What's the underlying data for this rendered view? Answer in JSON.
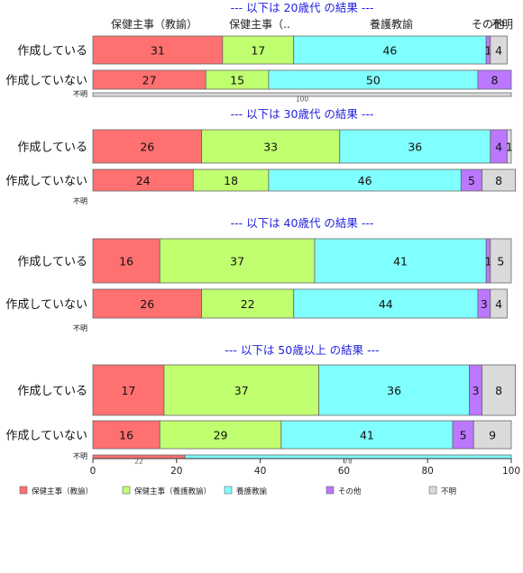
{
  "chart_data": {
    "type": "bar",
    "orientation": "horizontal",
    "stacked": true,
    "xlim": [
      0,
      100
    ],
    "x_ticks": [
      "0",
      "20",
      "40",
      "60",
      "80",
      "100"
    ],
    "top_labels": [
      "保健主事（教諭）",
      "保健主事（..",
      "養護教諭",
      "その他",
      "不明"
    ],
    "legend_position": "bottom",
    "series": [
      {
        "name": "保健主事（教諭）",
        "color": "#ff7070"
      },
      {
        "name": "保健主事（養護教諭）",
        "color": "#c0ff70"
      },
      {
        "name": "養護教諭",
        "color": "#80ffff"
      },
      {
        "name": "その他",
        "color": "#bb77ff"
      },
      {
        "name": "不明",
        "color": "#dadada"
      }
    ],
    "panels": [
      {
        "title": "--- 以下は 20歳代 の結果 ---",
        "rows": [
          {
            "label": "作成している",
            "values": [
              31,
              17,
              46,
              1,
              4
            ]
          },
          {
            "label": "作成していない",
            "values": [
              27,
              15,
              50,
              8,
              0
            ]
          },
          {
            "label": "不明",
            "values": [
              0,
              0,
              0,
              0,
              100
            ]
          }
        ]
      },
      {
        "title": "--- 以下は 30歳代 の結果 ---",
        "rows": [
          {
            "label": "作成している",
            "values": [
              26,
              33,
              36,
              4,
              1
            ]
          },
          {
            "label": "作成していない",
            "values": [
              24,
              18,
              46,
              5,
              8
            ]
          },
          {
            "label": "不明",
            "values": []
          }
        ]
      },
      {
        "title": "--- 以下は 40歳代 の結果 ---",
        "rows": [
          {
            "label": "作成している",
            "values": [
              16,
              37,
              41,
              1,
              5
            ]
          },
          {
            "label": "作成していない",
            "values": [
              26,
              22,
              44,
              3,
              4
            ]
          },
          {
            "label": "不明",
            "values": []
          }
        ]
      },
      {
        "title": "--- 以下は 50歳以上 の結果 ---",
        "rows": [
          {
            "label": "作成している",
            "values": [
              17,
              37,
              36,
              3,
              8
            ]
          },
          {
            "label": "作成していない",
            "values": [
              16,
              29,
              41,
              5,
              9
            ]
          },
          {
            "label": "不明",
            "values": [
              22,
              0,
              78,
              0,
              0
            ]
          }
        ]
      }
    ]
  }
}
